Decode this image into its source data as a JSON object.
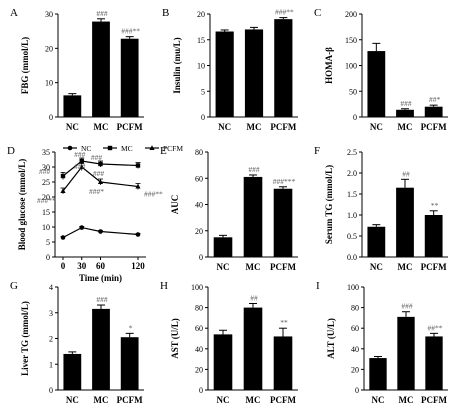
{
  "chart_data": [
    {
      "id": "A",
      "type": "bar",
      "letter": "A",
      "categories": [
        "NC",
        "MC",
        "PCFM"
      ],
      "values": [
        6.3,
        27.8,
        22.8
      ],
      "errors": [
        0.5,
        0.8,
        0.6
      ],
      "annotations": [
        "",
        "###",
        "###**"
      ],
      "ylabel": "FBG (mmol/L)",
      "ylim": [
        0,
        30
      ],
      "ticks": [
        0,
        10,
        20,
        30
      ],
      "tick_labels": [
        "0",
        "10",
        "20",
        "30"
      ]
    },
    {
      "id": "B",
      "type": "bar",
      "letter": "B",
      "categories": [
        "NC",
        "MC",
        "PCFM"
      ],
      "values": [
        16.6,
        17.0,
        19.0
      ],
      "errors": [
        0.3,
        0.4,
        0.3
      ],
      "annotations": [
        "",
        "",
        "###**"
      ],
      "ylabel": "Insulin (mu/L)",
      "ylim": [
        0,
        20
      ],
      "ticks": [
        0,
        5,
        10,
        15,
        20
      ],
      "tick_labels": [
        "0",
        "5",
        "10",
        "15",
        "20"
      ]
    },
    {
      "id": "C",
      "type": "bar",
      "letter": "C",
      "categories": [
        "NC",
        "MC",
        "PCFM"
      ],
      "values": [
        128,
        14,
        20
      ],
      "errors": [
        15,
        2,
        3
      ],
      "annotations": [
        "",
        "###",
        "##*"
      ],
      "ylabel": "HOMA-β",
      "ylim": [
        0,
        200
      ],
      "ticks": [
        0,
        50,
        100,
        150,
        200
      ],
      "tick_labels": [
        "0",
        "50",
        "100",
        "150",
        "200"
      ]
    },
    {
      "id": "D",
      "type": "line",
      "letter": "D",
      "x": [
        0,
        30,
        60,
        120
      ],
      "series": [
        {
          "name": "NC",
          "values": [
            6.5,
            9.8,
            8.5,
            7.5
          ],
          "errors": [
            0.3,
            0.4,
            0.3,
            0.3
          ]
        },
        {
          "name": "MC",
          "values": [
            27.0,
            32.0,
            31.0,
            30.5
          ],
          "errors": [
            1.2,
            1.0,
            1.0,
            1.0
          ]
        },
        {
          "name": "PCFM",
          "values": [
            22.0,
            30.0,
            25.0,
            23.5
          ],
          "errors": [
            1.0,
            1.2,
            1.0,
            1.0
          ]
        }
      ],
      "annotations": [
        "###",
        "###",
        "###",
        "###**",
        "###",
        "###",
        "###*",
        "###**"
      ],
      "xlabel": "Time (min)",
      "ylabel": "Blood glucose (mmol/L)",
      "xlim": [
        0,
        120
      ],
      "ylim": [
        0,
        35
      ],
      "xticks": [
        0,
        30,
        60,
        120
      ],
      "xtick_labels": [
        "0",
        "30",
        "60",
        "120"
      ],
      "ticks": [
        0,
        5,
        10,
        15,
        20,
        25,
        30,
        35
      ],
      "tick_labels": [
        "0",
        "5",
        "10",
        "15",
        "20",
        "25",
        "30",
        "35"
      ],
      "legend_position": "top"
    },
    {
      "id": "E",
      "type": "bar",
      "letter": "E",
      "categories": [
        "NC",
        "MC",
        "PCFM"
      ],
      "values": [
        15,
        61,
        52
      ],
      "errors": [
        1.5,
        1.5,
        1.5
      ],
      "annotations": [
        "",
        "###",
        "###***"
      ],
      "ylabel": "AUC",
      "ylim": [
        0,
        80
      ],
      "ticks": [
        0,
        20,
        40,
        60,
        80
      ],
      "tick_labels": [
        "0",
        "20",
        "40",
        "60",
        "80"
      ]
    },
    {
      "id": "F",
      "type": "bar",
      "letter": "F",
      "categories": [
        "NC",
        "MC",
        "PCFM"
      ],
      "values": [
        0.72,
        1.65,
        1.0
      ],
      "errors": [
        0.05,
        0.2,
        0.1
      ],
      "annotations": [
        "",
        "##",
        "**"
      ],
      "ylabel": "Serum TG (mmol/L)",
      "ylim": [
        0,
        2.5
      ],
      "ticks": [
        0,
        0.5,
        1.0,
        1.5,
        2.0,
        2.5
      ],
      "tick_labels": [
        "0.0",
        "0.5",
        "1.0",
        "1.5",
        "2.0",
        "2.5"
      ]
    },
    {
      "id": "G",
      "type": "bar",
      "letter": "G",
      "categories": [
        "NC",
        "MC",
        "PCFM"
      ],
      "values": [
        1.4,
        3.15,
        2.05
      ],
      "errors": [
        0.08,
        0.15,
        0.15
      ],
      "annotations": [
        "",
        "###",
        "*"
      ],
      "ylabel": "Liver TG (mmol/L)",
      "ylim": [
        0,
        4
      ],
      "ticks": [
        0,
        1,
        2,
        3,
        4
      ],
      "tick_labels": [
        "0",
        "1",
        "2",
        "3",
        "4"
      ]
    },
    {
      "id": "H",
      "type": "bar",
      "letter": "H",
      "categories": [
        "NC",
        "MC",
        "PCFM"
      ],
      "values": [
        54,
        80,
        52
      ],
      "errors": [
        4,
        4,
        8
      ],
      "annotations": [
        "",
        "##",
        "**"
      ],
      "ylabel": "AST (U/L)",
      "ylim": [
        0,
        100
      ],
      "ticks": [
        0,
        20,
        40,
        60,
        80,
        100
      ],
      "tick_labels": [
        "0",
        "20",
        "40",
        "60",
        "80",
        "100"
      ]
    },
    {
      "id": "I",
      "type": "bar",
      "letter": "I",
      "categories": [
        "NC",
        "MC",
        "PCFM"
      ],
      "values": [
        31,
        71,
        52
      ],
      "errors": [
        1.5,
        5,
        3
      ],
      "annotations": [
        "",
        "###",
        "##**"
      ],
      "ylabel": "ALT (U/L)",
      "ylim": [
        0,
        100
      ],
      "ticks": [
        0,
        20,
        40,
        60,
        80,
        100
      ],
      "tick_labels": [
        "0",
        "20",
        "40",
        "60",
        "80",
        "100"
      ]
    }
  ]
}
